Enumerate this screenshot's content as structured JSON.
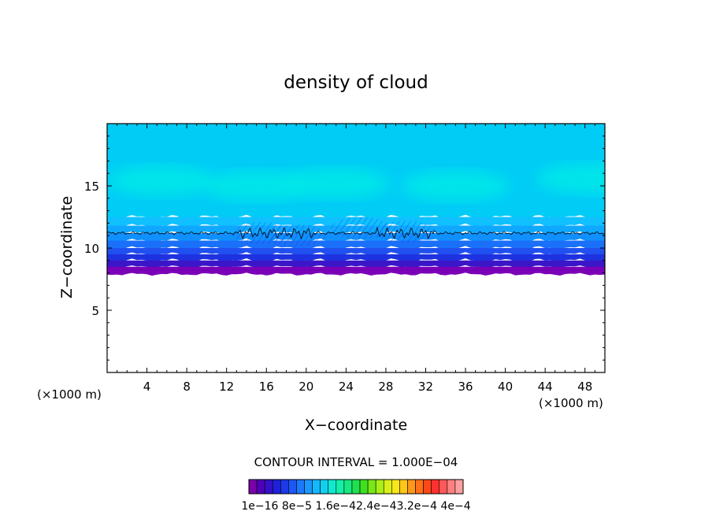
{
  "chart_data": {
    "type": "heatmap",
    "title": "density of cloud",
    "xlabel": "X−coordinate",
    "ylabel": "Z−coordinate",
    "x_unit_left": "(×1000 m)",
    "x_unit_right": "(×1000 m)",
    "xlim": [
      0,
      50
    ],
    "ylim": [
      0,
      20
    ],
    "x_ticks": [
      4,
      8,
      12,
      16,
      20,
      24,
      28,
      32,
      36,
      40,
      44,
      48
    ],
    "y_ticks": [
      5,
      10,
      15
    ],
    "cloud_base_z": 7.9,
    "cloud_top_z": 20,
    "contour_line_z": 11.2,
    "layers": [
      {
        "z_from": 7.9,
        "z_to": 8.5,
        "color": "#7a00b8"
      },
      {
        "z_from": 8.5,
        "z_to": 9.0,
        "color": "#3a16c8"
      },
      {
        "z_from": 9.0,
        "z_to": 9.5,
        "color": "#1e32e0"
      },
      {
        "z_from": 9.5,
        "z_to": 10.0,
        "color": "#2050f0"
      },
      {
        "z_from": 10.0,
        "z_to": 10.6,
        "color": "#1a70f8"
      },
      {
        "z_from": 10.6,
        "z_to": 11.2,
        "color": "#1090ff"
      },
      {
        "z_from": 11.2,
        "z_to": 11.8,
        "color": "#10a8ff"
      },
      {
        "z_from": 11.8,
        "z_to": 12.5,
        "color": "#10c0ff"
      },
      {
        "z_from": 12.5,
        "z_to": 20.0,
        "color": "#00ccf6"
      }
    ],
    "max_patches": [
      {
        "x": 5.5,
        "z": 15.4
      },
      {
        "x": 15.0,
        "z": 15.0
      },
      {
        "x": 23.0,
        "z": 15.2
      },
      {
        "x": 35.0,
        "z": 15.0
      },
      {
        "x": 48.5,
        "z": 15.6
      }
    ],
    "max_patch_color": "#00e8e8",
    "contour_interval_text": "CONTOUR INTERVAL = 1.000E−04",
    "colorbar_colors": [
      "#7a00a8",
      "#5000b8",
      "#3410c8",
      "#2020d8",
      "#1c3ae8",
      "#1c58f4",
      "#1c78fc",
      "#1a98ff",
      "#14b8ff",
      "#10d0f0",
      "#10e8d0",
      "#14f0a8",
      "#18e880",
      "#20e050",
      "#40e020",
      "#78e818",
      "#a8f018",
      "#d8f018",
      "#f8e818",
      "#ffc818",
      "#ff9818",
      "#ff7018",
      "#ff4818",
      "#ff3030",
      "#ff5858",
      "#ff8080",
      "#ffa0a0"
    ],
    "colorbar_labels_text": "1e−16 8e−5 1.6e−42.4e−43.2e−4 4e−4"
  }
}
